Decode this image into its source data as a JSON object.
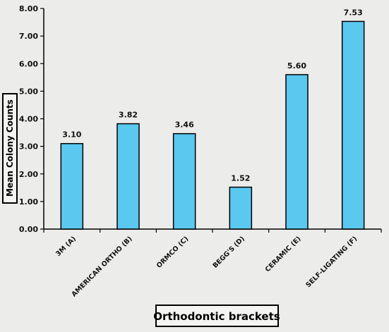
{
  "chart_data": {
    "type": "bar",
    "categories": [
      "3M (A)",
      "AMERICAN ORTHO (B)",
      "ORMCO (C)",
      "BEGG'S  (D)",
      "CERAMIC (E)",
      "SELF-LIGATING (F)"
    ],
    "values": [
      3.1,
      3.82,
      3.46,
      1.52,
      5.6,
      7.53
    ],
    "data_labels": [
      "3.10",
      "3.82",
      "3.46",
      "1.52",
      "5.60",
      "7.53"
    ],
    "yticks": [
      "0.00",
      "1.00",
      "2.00",
      "3.00",
      "4.00",
      "5.00",
      "6.00",
      "7.00",
      "8.00"
    ],
    "ylim": [
      0,
      8
    ],
    "ylabel": "Mean Colony Counts",
    "xlabel": "Orthodontic brackets",
    "grid": false,
    "bar_color": "#5bc8f0",
    "bar_edge": "#000000"
  }
}
